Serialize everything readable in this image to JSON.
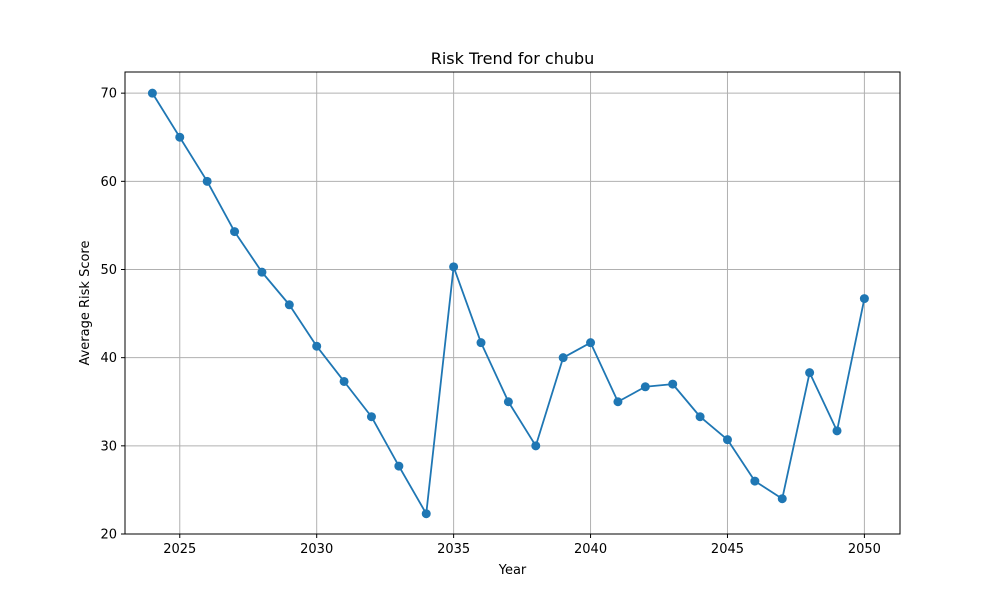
{
  "chart_data": {
    "type": "line",
    "title": "Risk Trend for chubu",
    "xlabel": "Year",
    "ylabel": "Average Risk Score",
    "xlim": [
      2023.0,
      2051.3
    ],
    "ylim": [
      20,
      72.4
    ],
    "x_ticks": [
      2025,
      2030,
      2035,
      2040,
      2045,
      2050
    ],
    "y_ticks": [
      20,
      30,
      40,
      50,
      60,
      70
    ],
    "grid": true,
    "series": [
      {
        "color": "#1f77b4",
        "marker": "circle",
        "x": [
          2024,
          2025,
          2026,
          2027,
          2028,
          2029,
          2030,
          2031,
          2032,
          2033,
          2034,
          2035,
          2036,
          2037,
          2038,
          2039,
          2040,
          2041,
          2042,
          2043,
          2044,
          2045,
          2046,
          2047,
          2048,
          2049,
          2050
        ],
        "y": [
          70.0,
          65.0,
          60.0,
          54.3,
          49.7,
          46.0,
          41.3,
          37.3,
          33.3,
          27.7,
          22.3,
          50.3,
          41.7,
          35.0,
          30.0,
          40.0,
          41.7,
          35.0,
          36.7,
          37.0,
          33.3,
          30.7,
          26.0,
          24.0,
          38.3,
          31.7,
          46.7
        ]
      }
    ]
  }
}
